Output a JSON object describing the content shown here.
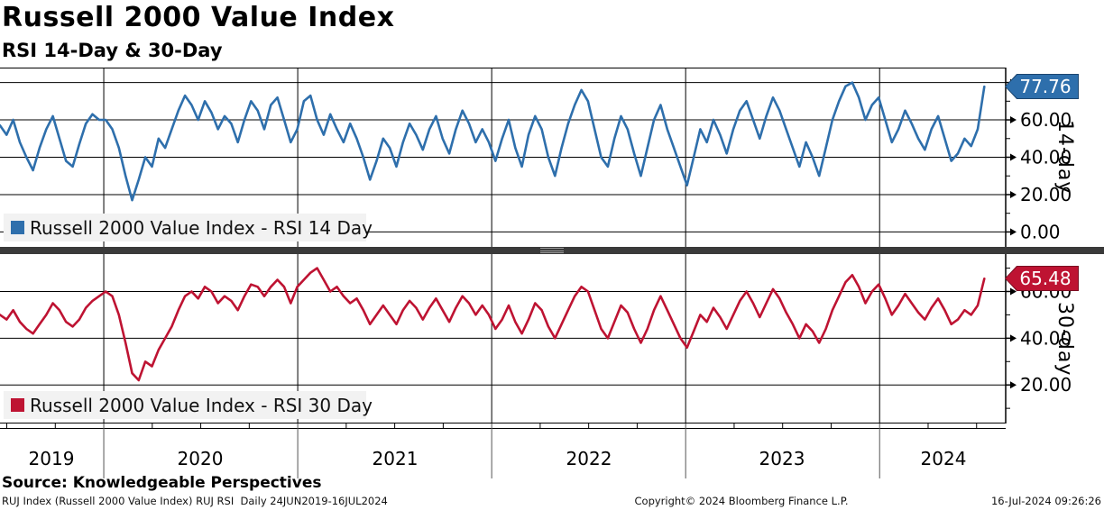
{
  "header": {
    "title": "Russell 2000 Value Index",
    "subtitle": "RSI 14-Day & 30-Day"
  },
  "panels": [
    {
      "legend": "Russell 2000 Value Index - RSI 14 Day",
      "axis_title": "14-day",
      "last_value": "77.76",
      "color": "#2E6FAC",
      "badge_border": "#1C4670"
    },
    {
      "legend": "Russell 2000 Value Index - RSI 30 Day",
      "axis_title": "30-day",
      "last_value": "65.48",
      "color": "#BE1332",
      "badge_border": "#7A0E22"
    }
  ],
  "xaxis": {
    "years": [
      "2019",
      "2020",
      "2021",
      "2022",
      "2023",
      "2024"
    ]
  },
  "footer": {
    "source": "Source: Knowledgeable Perspectives",
    "left": "RUJ Index (Russell 2000 Value Index) RUJ RSI  Daily 24JUN2019-16JUL2024",
    "center": "Copyright© 2024 Bloomberg Finance L.P.",
    "right": "16-Jul-2024 09:26:26"
  },
  "colors": {
    "divider": "#3A3A3A",
    "legend_bg": "#F2F2F2",
    "grid": "#000000"
  },
  "chart_data": [
    {
      "type": "line",
      "title": "Russell 2000 Value Index - RSI 14 Day",
      "x_domain": [
        2019.465,
        2024.65
      ],
      "x_data_end": 2024.54,
      "x_range_label": "24JUN2019-16JUL2024",
      "ylim": [
        -8,
        88
      ],
      "yticks": [
        {
          "v": 80,
          "label": ""
        },
        {
          "v": 60,
          "label": "60.00"
        },
        {
          "v": 40,
          "label": "40.00"
        },
        {
          "v": 20,
          "label": "20.00"
        },
        {
          "v": 0,
          "label": "0.00"
        }
      ],
      "minor_yticks": [
        10,
        30,
        50,
        70
      ],
      "grid_years": [
        2020,
        2021,
        2022,
        2023,
        2024
      ],
      "last_value": 77.76,
      "color": "#2E6FAC",
      "values": [
        57,
        52,
        60,
        48,
        40,
        33,
        45,
        55,
        62,
        50,
        38,
        35,
        47,
        58,
        63,
        60,
        60,
        55,
        45,
        30,
        17,
        28,
        40,
        35,
        50,
        45,
        55,
        65,
        73,
        68,
        60,
        70,
        64,
        55,
        62,
        58,
        48,
        60,
        70,
        65,
        55,
        68,
        72,
        60,
        48,
        55,
        70,
        73,
        60,
        52,
        63,
        55,
        48,
        58,
        50,
        40,
        28,
        38,
        50,
        45,
        35,
        48,
        58,
        52,
        44,
        55,
        62,
        50,
        42,
        55,
        65,
        58,
        48,
        55,
        48,
        38,
        50,
        60,
        45,
        35,
        52,
        62,
        55,
        40,
        30,
        45,
        58,
        68,
        76,
        70,
        55,
        40,
        35,
        50,
        62,
        55,
        42,
        30,
        45,
        60,
        68,
        55,
        45,
        35,
        25,
        40,
        55,
        48,
        60,
        52,
        42,
        55,
        65,
        70,
        60,
        50,
        62,
        72,
        65,
        55,
        45,
        35,
        48,
        40,
        30,
        45,
        60,
        70,
        78,
        80,
        72,
        60,
        68,
        72,
        60,
        48,
        55,
        65,
        58,
        50,
        44,
        55,
        62,
        50,
        38,
        42,
        50,
        46,
        55,
        77.76
      ]
    },
    {
      "type": "line",
      "title": "Russell 2000 Value Index - RSI 30 Day",
      "x_domain": [
        2019.465,
        2024.65
      ],
      "x_data_end": 2024.54,
      "x_range_label": "24JUN2019-16JUL2024",
      "ylim": [
        3.5,
        76
      ],
      "yticks": [
        {
          "v": 60,
          "label": "60.00"
        },
        {
          "v": 40,
          "label": "40.00"
        },
        {
          "v": 20,
          "label": "20.00"
        }
      ],
      "minor_yticks": [
        10,
        30,
        50,
        70
      ],
      "grid_years": [
        2020,
        2021,
        2022,
        2023,
        2024
      ],
      "last_value": 65.48,
      "color": "#BE1332",
      "values": [
        50,
        48,
        52,
        47,
        44,
        42,
        46,
        50,
        55,
        52,
        47,
        45,
        48,
        53,
        56,
        58,
        60,
        58,
        50,
        38,
        25,
        22,
        30,
        28,
        35,
        40,
        45,
        52,
        58,
        60,
        57,
        62,
        60,
        55,
        58,
        56,
        52,
        58,
        63,
        62,
        58,
        62,
        65,
        62,
        55,
        62,
        65,
        68,
        70,
        65,
        60,
        62,
        58,
        55,
        57,
        52,
        46,
        50,
        54,
        50,
        46,
        52,
        56,
        53,
        48,
        53,
        57,
        52,
        47,
        53,
        58,
        55,
        50,
        54,
        50,
        44,
        48,
        54,
        47,
        42,
        48,
        55,
        52,
        45,
        40,
        46,
        52,
        58,
        62,
        60,
        52,
        44,
        40,
        47,
        54,
        51,
        44,
        38,
        44,
        52,
        58,
        52,
        46,
        40,
        36,
        43,
        50,
        47,
        53,
        49,
        44,
        50,
        56,
        60,
        55,
        49,
        55,
        61,
        57,
        51,
        46,
        40,
        46,
        43,
        38,
        44,
        52,
        58,
        64,
        67,
        62,
        55,
        60,
        63,
        57,
        50,
        54,
        59,
        55,
        51,
        48,
        53,
        57,
        52,
        46,
        48,
        52,
        50,
        54,
        65.48
      ]
    }
  ]
}
